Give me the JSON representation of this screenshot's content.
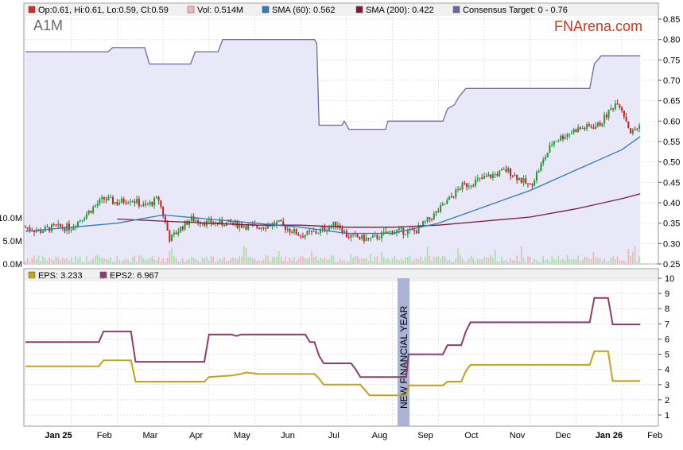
{
  "ticker": "A1M",
  "brand": "FNArena.com",
  "legend_top": [
    {
      "label": "Op:0.61, Hi:0.61, Lo:0.59, Cl:0.59",
      "color": "#d42a2a"
    },
    {
      "label": "Vol: 0.514M",
      "color": "#f3b3b3"
    },
    {
      "label": "SMA (60): 0.562",
      "color": "#2f7bbf"
    },
    {
      "label": "SMA (200): 0.422",
      "color": "#7a1a36"
    },
    {
      "label": "Consensus Target: 0 - 0.76",
      "color": "#6a6aa0"
    }
  ],
  "legend_bottom": [
    {
      "label": "EPS: 3.233",
      "color": "#c4a21a"
    },
    {
      "label": "EPS2: 6.967",
      "color": "#8e3d6e"
    }
  ],
  "annotation": "NEW FINANCIAL YEAR",
  "chart_data": [
    {
      "type": "candlestick",
      "months": [
        "Jan 25",
        "Feb",
        "Mar",
        "Apr",
        "May",
        "Jun",
        "Jul",
        "Aug",
        "Sep",
        "Oct",
        "Nov",
        "Dec",
        "Jan 26",
        "Feb"
      ],
      "bold_months": [
        "Jan 25",
        "Jan 26"
      ],
      "ylim": [
        0.25,
        0.85
      ],
      "yticks": [
        "0.85",
        "0.80",
        "0.75",
        "0.70",
        "0.65",
        "0.60",
        "0.55",
        "0.50",
        "0.45",
        "0.40",
        "0.35",
        "0.30",
        "0.25"
      ],
      "volume_ticks": [
        "10.0M",
        "5.0M",
        "0.0M"
      ],
      "close_anchors": [
        [
          0,
          0.34
        ],
        [
          0.3,
          0.33
        ],
        [
          0.6,
          0.34
        ],
        [
          1.0,
          0.34
        ],
        [
          1.4,
          0.38
        ],
        [
          1.7,
          0.41
        ],
        [
          2.0,
          0.4
        ],
        [
          2.3,
          0.41
        ],
        [
          2.6,
          0.39
        ],
        [
          2.9,
          0.41
        ],
        [
          3.0,
          0.37
        ],
        [
          3.15,
          0.31
        ],
        [
          3.4,
          0.34
        ],
        [
          3.6,
          0.36
        ],
        [
          4.0,
          0.35
        ],
        [
          4.5,
          0.35
        ],
        [
          5.0,
          0.34
        ],
        [
          5.5,
          0.35
        ],
        [
          6.0,
          0.32
        ],
        [
          6.4,
          0.33
        ],
        [
          6.8,
          0.35
        ],
        [
          7.0,
          0.32
        ],
        [
          7.5,
          0.31
        ],
        [
          8.0,
          0.33
        ],
        [
          8.5,
          0.33
        ],
        [
          9.0,
          0.38
        ],
        [
          9.5,
          0.44
        ],
        [
          10.0,
          0.46
        ],
        [
          10.5,
          0.48
        ],
        [
          11.0,
          0.44
        ],
        [
          11.5,
          0.55
        ],
        [
          12.0,
          0.58
        ],
        [
          12.5,
          0.59
        ],
        [
          12.9,
          0.65
        ],
        [
          13.0,
          0.63
        ],
        [
          13.2,
          0.57
        ],
        [
          13.4,
          0.59
        ]
      ],
      "consensus_target": [
        [
          0,
          0.77
        ],
        [
          1.8,
          0.77
        ],
        [
          1.9,
          0.78
        ],
        [
          2.6,
          0.78
        ],
        [
          2.7,
          0.74
        ],
        [
          3.6,
          0.74
        ],
        [
          3.7,
          0.77
        ],
        [
          4.2,
          0.77
        ],
        [
          4.3,
          0.8
        ],
        [
          6.3,
          0.8
        ],
        [
          6.35,
          0.79
        ],
        [
          6.4,
          0.59
        ],
        [
          6.9,
          0.59
        ],
        [
          6.95,
          0.6
        ],
        [
          7.05,
          0.58
        ],
        [
          7.85,
          0.58
        ],
        [
          7.9,
          0.6
        ],
        [
          9.1,
          0.6
        ],
        [
          9.2,
          0.63
        ],
        [
          9.35,
          0.64
        ],
        [
          9.45,
          0.66
        ],
        [
          9.6,
          0.68
        ],
        [
          12.3,
          0.68
        ],
        [
          12.4,
          0.74
        ],
        [
          12.55,
          0.76
        ],
        [
          13.4,
          0.76
        ]
      ],
      "sma60": [
        [
          0,
          0.33
        ],
        [
          1.0,
          0.34
        ],
        [
          2.0,
          0.35
        ],
        [
          3.0,
          0.37
        ],
        [
          4.0,
          0.36
        ],
        [
          5.0,
          0.35
        ],
        [
          6.0,
          0.34
        ],
        [
          7.0,
          0.325
        ],
        [
          8.0,
          0.325
        ],
        [
          9.0,
          0.35
        ],
        [
          10.0,
          0.39
        ],
        [
          11.0,
          0.43
        ],
        [
          12.0,
          0.48
        ],
        [
          13.0,
          0.53
        ],
        [
          13.4,
          0.562
        ]
      ],
      "sma200": [
        [
          2.0,
          0.36
        ],
        [
          3.0,
          0.355
        ],
        [
          4.0,
          0.35
        ],
        [
          5.0,
          0.345
        ],
        [
          6.0,
          0.345
        ],
        [
          7.0,
          0.34
        ],
        [
          8.0,
          0.34
        ],
        [
          9.0,
          0.345
        ],
        [
          10.0,
          0.355
        ],
        [
          11.0,
          0.365
        ],
        [
          12.0,
          0.385
        ],
        [
          13.0,
          0.41
        ],
        [
          13.4,
          0.422
        ]
      ]
    },
    {
      "type": "line",
      "ylim": [
        1,
        10
      ],
      "yticks": [
        "10",
        "9",
        "8",
        "7",
        "6",
        "5",
        "4",
        "3",
        "2",
        "1"
      ],
      "series": [
        {
          "name": "EPS",
          "points": [
            [
              0,
              4.2
            ],
            [
              1.6,
              4.2
            ],
            [
              1.7,
              4.6
            ],
            [
              2.3,
              4.6
            ],
            [
              2.4,
              3.2
            ],
            [
              3.9,
              3.2
            ],
            [
              4.0,
              3.5
            ],
            [
              4.5,
              3.6
            ],
            [
              4.7,
              3.7
            ],
            [
              4.8,
              3.8
            ],
            [
              5.1,
              3.7
            ],
            [
              6.3,
              3.7
            ],
            [
              6.4,
              3.4
            ],
            [
              6.5,
              3.0
            ],
            [
              7.3,
              3.0
            ],
            [
              7.5,
              2.3
            ],
            [
              8.3,
              2.3
            ],
            [
              8.35,
              2.95
            ],
            [
              9.1,
              2.95
            ],
            [
              9.2,
              3.2
            ],
            [
              9.5,
              3.2
            ],
            [
              9.6,
              3.9
            ],
            [
              9.7,
              4.3
            ],
            [
              12.3,
              4.3
            ],
            [
              12.4,
              5.2
            ],
            [
              12.7,
              5.2
            ],
            [
              12.8,
              3.233
            ],
            [
              13.4,
              3.233
            ]
          ]
        },
        {
          "name": "EPS2",
          "points": [
            [
              0,
              5.8
            ],
            [
              1.6,
              5.8
            ],
            [
              1.7,
              6.5
            ],
            [
              2.3,
              6.5
            ],
            [
              2.4,
              4.5
            ],
            [
              3.9,
              4.5
            ],
            [
              4.0,
              6.3
            ],
            [
              4.5,
              6.3
            ],
            [
              4.6,
              6.2
            ],
            [
              4.7,
              6.3
            ],
            [
              6.1,
              6.3
            ],
            [
              6.2,
              5.8
            ],
            [
              6.3,
              5.8
            ],
            [
              6.4,
              4.9
            ],
            [
              6.5,
              4.4
            ],
            [
              7.1,
              4.4
            ],
            [
              7.2,
              4.0
            ],
            [
              7.3,
              3.5
            ],
            [
              8.3,
              3.5
            ],
            [
              8.35,
              5.0
            ],
            [
              9.1,
              5.0
            ],
            [
              9.2,
              5.6
            ],
            [
              9.5,
              5.6
            ],
            [
              9.6,
              6.5
            ],
            [
              9.7,
              7.1
            ],
            [
              12.3,
              7.1
            ],
            [
              12.4,
              8.7
            ],
            [
              12.7,
              8.7
            ],
            [
              12.8,
              6.967
            ],
            [
              13.4,
              6.967
            ]
          ]
        }
      ]
    }
  ]
}
